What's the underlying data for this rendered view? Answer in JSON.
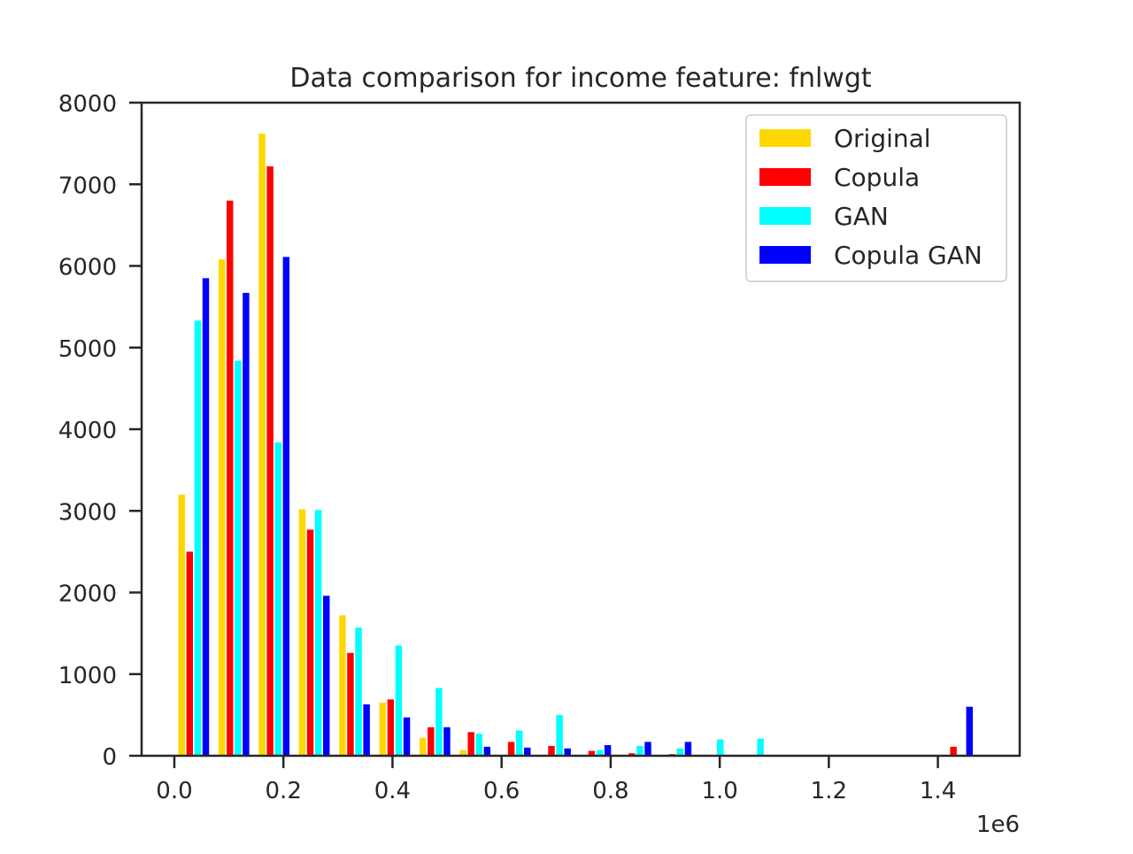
{
  "chart_data": {
    "type": "bar",
    "title": "Data comparison for income feature: fnlwgt",
    "xlabel": "",
    "ylabel": "",
    "x_offset_label": "1e6",
    "xlim": [
      -0.06,
      1.55
    ],
    "ylim": [
      0,
      8000
    ],
    "x_unit_scale": 1000000,
    "xticks": [
      0.0,
      0.2,
      0.4,
      0.6,
      0.8,
      1.0,
      1.2,
      1.4
    ],
    "xtick_labels": [
      "0.0",
      "0.2",
      "0.4",
      "0.6",
      "0.8",
      "1.0",
      "1.2",
      "1.4"
    ],
    "yticks": [
      0,
      1000,
      2000,
      3000,
      4000,
      5000,
      6000,
      7000,
      8000
    ],
    "ytick_labels": [
      "0",
      "1000",
      "2000",
      "3000",
      "4000",
      "5000",
      "6000",
      "7000",
      "8000"
    ],
    "grid": false,
    "legend_position": "top-right",
    "bin_width": 0.0737,
    "bin_left": [
      0.0,
      0.0737,
      0.1474,
      0.2211,
      0.2948,
      0.3685,
      0.4422,
      0.5159,
      0.5896,
      0.6633,
      0.737,
      0.8107,
      0.8844,
      0.9581,
      1.0318,
      1.1055,
      1.1792,
      1.2529,
      1.3266,
      1.4003
    ],
    "series": [
      {
        "name": "Original",
        "color": "#ffd700",
        "values": [
          3200,
          6080,
          7620,
          3020,
          1720,
          650,
          220,
          70,
          0,
          0,
          0,
          0,
          0,
          0,
          0,
          0,
          0,
          0,
          0,
          0
        ]
      },
      {
        "name": "Copula",
        "color": "#ff0000",
        "values": [
          2500,
          6800,
          7220,
          2770,
          1260,
          690,
          350,
          290,
          170,
          120,
          60,
          30,
          20,
          10,
          0,
          0,
          0,
          0,
          0,
          110
        ]
      },
      {
        "name": "GAN",
        "color": "#00ffff",
        "values": [
          5330,
          4840,
          3840,
          3010,
          1570,
          1350,
          830,
          270,
          310,
          500,
          70,
          120,
          90,
          200,
          210,
          0,
          0,
          0,
          0,
          0
        ]
      },
      {
        "name": "Copula GAN",
        "color": "#0000ff",
        "values": [
          5850,
          5670,
          6110,
          1960,
          630,
          470,
          350,
          110,
          100,
          90,
          130,
          170,
          170,
          0,
          0,
          0,
          0,
          0,
          0,
          600
        ]
      }
    ]
  }
}
